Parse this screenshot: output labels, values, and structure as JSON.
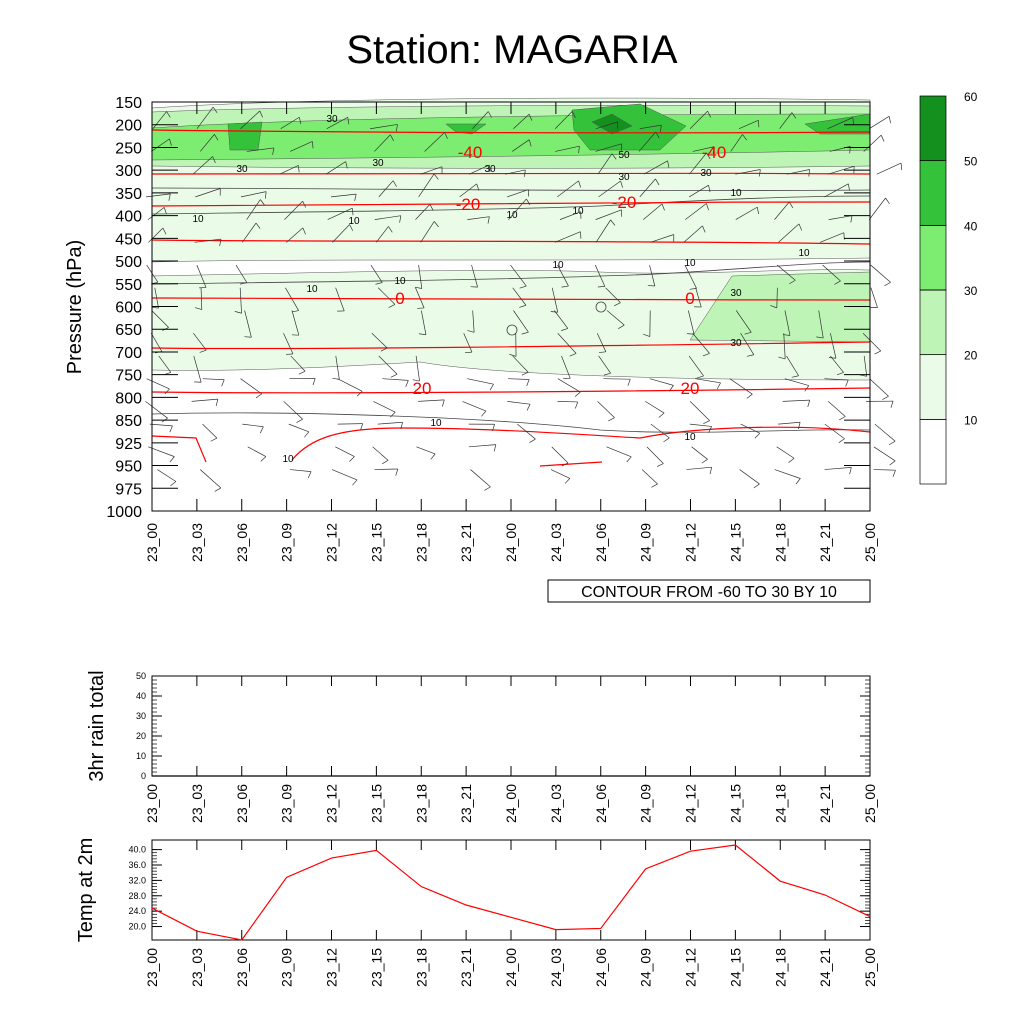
{
  "title": "Station: MAGARIA",
  "time_labels": [
    "23_00",
    "23_03",
    "23_06",
    "23_09",
    "23_12",
    "23_15",
    "23_18",
    "23_21",
    "24_00",
    "24_03",
    "24_06",
    "24_09",
    "24_12",
    "24_15",
    "24_18",
    "24_21",
    "25_00"
  ],
  "chart_data": [
    {
      "type": "heatmap",
      "title": "Station: MAGARIA",
      "ylabel": "Pressure (hPa)",
      "xlabel": "",
      "pressure_levels": [
        150,
        200,
        250,
        300,
        350,
        400,
        450,
        500,
        550,
        600,
        650,
        700,
        750,
        800,
        850,
        925,
        950,
        975,
        1000
      ],
      "colorbar": {
        "labels": [
          "10",
          "20",
          "30",
          "40",
          "50",
          "60"
        ],
        "colors": [
          "#ffffff",
          "#eafbe8",
          "#bef5b6",
          "#7ded72",
          "#34c23a",
          "#13901d"
        ]
      },
      "contour_note": "CONTOUR FROM -60 TO 30 BY 10",
      "temperature_contours": [
        {
          "label": "-40",
          "level": -40
        },
        {
          "label": "-20",
          "level": -20
        },
        {
          "label": "0",
          "level": 0
        },
        {
          "label": "20",
          "level": 20
        }
      ],
      "wind_contour_labels": [
        "10",
        "30",
        "50"
      ]
    },
    {
      "type": "line",
      "ylabel": "3hr rain total",
      "ylim": [
        0,
        50
      ],
      "yticks": [
        "0",
        "10",
        "20",
        "30",
        "40",
        "50"
      ],
      "values": [
        0,
        0,
        0,
        0,
        0,
        0,
        0,
        0,
        0,
        0,
        0,
        0,
        0,
        0,
        0,
        0,
        0
      ]
    },
    {
      "type": "line",
      "ylabel": "Temp at 2m",
      "ylim": [
        16.5,
        42.5
      ],
      "yticks": [
        "20.0",
        "24.0",
        "28.0",
        "32.0",
        "36.0",
        "40.0"
      ],
      "values": [
        24.8,
        18.8,
        16.5,
        32.8,
        37.8,
        39.8,
        30.4,
        25.6,
        22.4,
        19.2,
        19.5,
        35.0,
        39.6,
        41.2,
        31.8,
        28.2,
        22.6
      ],
      "color": "#ff0000"
    }
  ]
}
